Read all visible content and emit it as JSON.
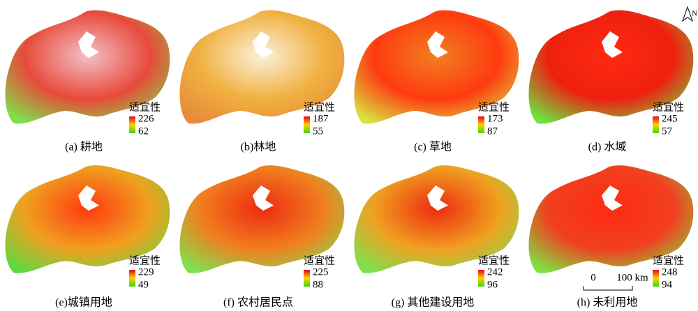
{
  "panels": [
    {
      "caption": "(a) 耕地",
      "legend_title": "适宜性",
      "max": "226",
      "min": "62"
    },
    {
      "caption": "(b)林地",
      "legend_title": "适宜性",
      "max": "187",
      "min": "55"
    },
    {
      "caption": "(c) 草地",
      "legend_title": "适宜性",
      "max": "173",
      "min": "87"
    },
    {
      "caption": "(d) 水域",
      "legend_title": "适宜性",
      "max": "245",
      "min": "57"
    },
    {
      "caption": "(e)城镇用地",
      "legend_title": "适宜性",
      "max": "229",
      "min": "49"
    },
    {
      "caption": "(f) 农村居民点",
      "legend_title": "适宜性",
      "max": "225",
      "min": "88"
    },
    {
      "caption": "(g) 其他建设用地",
      "legend_title": "适宜性",
      "max": "242",
      "min": "96"
    },
    {
      "caption": "(h) 未利用地",
      "legend_title": "适宜性",
      "max": "248",
      "min": "94"
    }
  ],
  "scale_bar": {
    "start": "0",
    "end": "100 km"
  },
  "north": "N"
}
